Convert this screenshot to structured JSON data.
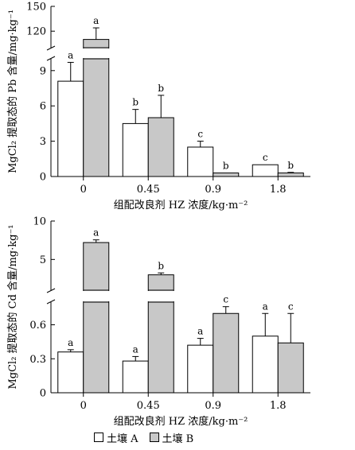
{
  "colors": {
    "series_a": "#ffffff",
    "series_b": "#c8c8c8",
    "axis": "#000000"
  },
  "legend": {
    "a": "土壤 A",
    "b": "土壤 B"
  },
  "chart_data": [
    {
      "type": "bar",
      "ylabel": "MgCl₂ 提取态的 Pb 含量/mg·kg⁻¹",
      "xlabel": "组配改良剂 HZ 浓度/kg·m⁻²",
      "categories": [
        "0",
        "0.45",
        "0.9",
        "1.8"
      ],
      "axis_break": true,
      "ylim_lower": [
        0,
        10
      ],
      "ylim_upper": [
        100,
        150
      ],
      "yticks_lower": [
        "0",
        "3",
        "6",
        "9"
      ],
      "yticks_upper": [
        "120",
        "150"
      ],
      "grid": false,
      "series": [
        {
          "name": "土壤 A",
          "values": [
            8.1,
            4.5,
            2.5,
            1.0
          ],
          "errors": [
            1.6,
            1.2,
            0.5,
            0.0
          ],
          "letters": [
            "a",
            "b",
            "c",
            "c"
          ]
        },
        {
          "name": "土壤 B",
          "values": [
            110,
            5.0,
            0.3,
            0.3
          ],
          "errors": [
            14,
            1.9,
            0.0,
            0.05
          ],
          "letters": [
            "a",
            "b",
            "b",
            "b"
          ]
        }
      ]
    },
    {
      "type": "bar",
      "ylabel": "MgCl₂ 提取态的 Cd 含量/mg·kg⁻¹",
      "xlabel": "组配改良剂 HZ 浓度/kg·m⁻²",
      "categories": [
        "0",
        "0.45",
        "0.9",
        "1.8"
      ],
      "axis_break": true,
      "ylim_lower": [
        0,
        0.8
      ],
      "ylim_upper": [
        1,
        10
      ],
      "yticks_lower": [
        "0",
        "0.3",
        "0.6"
      ],
      "yticks_upper": [
        "5",
        "10"
      ],
      "grid": false,
      "series": [
        {
          "name": "土壤 A",
          "values": [
            0.36,
            0.28,
            0.42,
            0.5
          ],
          "errors": [
            0.02,
            0.04,
            0.06,
            0.2
          ],
          "letters": [
            "a",
            "a",
            "a",
            "a"
          ]
        },
        {
          "name": "土壤 B",
          "values": [
            7.2,
            3.0,
            0.7,
            0.44
          ],
          "errors": [
            0.35,
            0.25,
            0.06,
            0.26
          ],
          "letters": [
            "a",
            "b",
            "c",
            "c"
          ]
        }
      ]
    }
  ]
}
